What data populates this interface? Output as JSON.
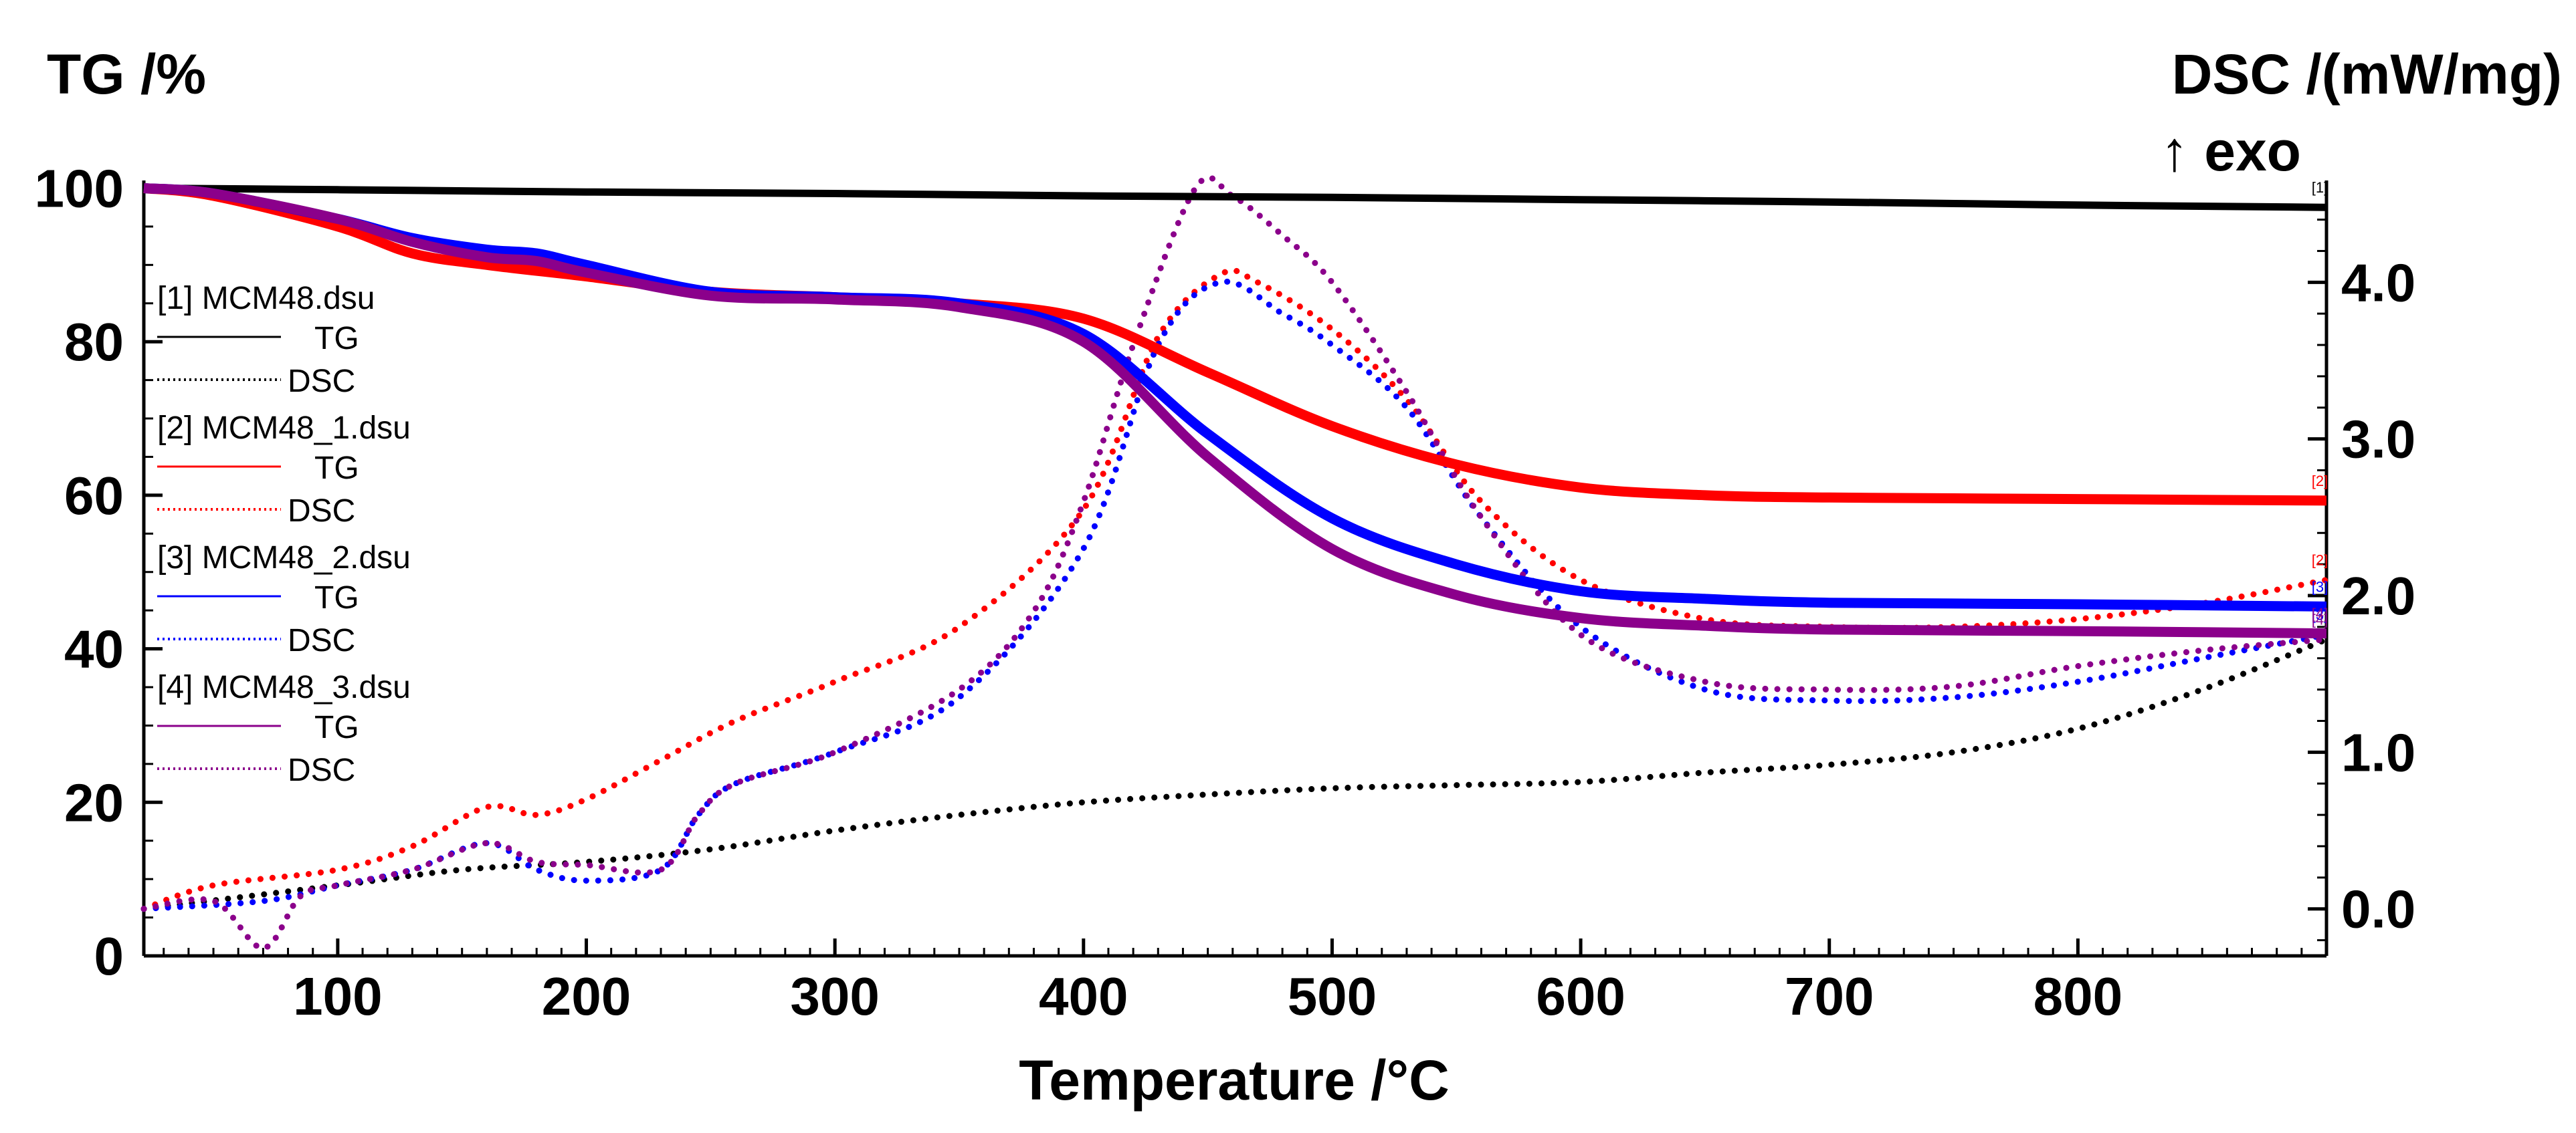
{
  "chart_data": {
    "type": "line",
    "title": "",
    "xlabel": "Temperature /°C",
    "ylabel_left": "TG /%",
    "ylabel_right": "DSC /(mWmg)",
    "ylabel_right_display": "DSC /(mW/mg)",
    "ylabel_right_note": "↑ exo",
    "xlim": [
      22,
      900
    ],
    "ylim_left": [
      0,
      101
    ],
    "ylim_right": [
      -0.3,
      4.65
    ],
    "xticks": [
      100,
      200,
      300,
      400,
      500,
      600,
      700,
      800
    ],
    "xtick_labels": [
      "100",
      "200",
      "300",
      "400",
      "500",
      "600",
      "700",
      "800"
    ],
    "yticks_left": [
      0,
      20,
      40,
      60,
      80,
      100
    ],
    "ytick_labels_left": [
      "0",
      "20",
      "40",
      "60",
      "80",
      "100"
    ],
    "yticks_right": [
      0,
      1,
      2,
      3,
      4
    ],
    "ytick_labels_right": [
      "0.0",
      "1.0",
      "2.0",
      "3.0",
      "4.0"
    ],
    "grid": false,
    "legend_position": "left",
    "legend": [
      {
        "file": "[1] MCM48.dsu",
        "tg": "TG",
        "dsc": "DSC",
        "color": "#000000"
      },
      {
        "file": "[2] MCM48_1.dsu",
        "tg": "TG",
        "dsc": "DSC",
        "color": "#ff0000"
      },
      {
        "file": "[3] MCM48_2.dsu",
        "tg": "TG",
        "dsc": "DSC",
        "color": "#0000ff"
      },
      {
        "file": "[4] MCM48_3.dsu",
        "tg": "TG",
        "dsc": "DSC",
        "color": "#8b008b"
      }
    ],
    "series": [
      {
        "name": "[1] MCM48 TG",
        "axis": "left",
        "style": "solid",
        "color": "#000000",
        "marker": "[1]",
        "x": [
          22,
          100,
          200,
          300,
          400,
          500,
          600,
          700,
          800,
          900
        ],
        "y": [
          100,
          99.8,
          99.5,
          99.3,
          99.0,
          98.8,
          98.5,
          98.2,
          97.8,
          97.5
        ]
      },
      {
        "name": "[1] MCM48 DSC",
        "axis": "right",
        "style": "dotted",
        "color": "#000000",
        "x": [
          22,
          100,
          150,
          200,
          250,
          300,
          350,
          400,
          450,
          500,
          550,
          600,
          650,
          700,
          750,
          800,
          850,
          900
        ],
        "y": [
          0.0,
          0.15,
          0.25,
          0.3,
          0.38,
          0.5,
          0.6,
          0.68,
          0.73,
          0.77,
          0.79,
          0.81,
          0.87,
          0.92,
          1.0,
          1.15,
          1.4,
          1.72
        ]
      },
      {
        "name": "[2] MCM48_1 TG",
        "axis": "left",
        "style": "solid",
        "color": "#ff0000",
        "marker": "[2]",
        "x": [
          22,
          50,
          100,
          130,
          160,
          200,
          250,
          300,
          350,
          400,
          450,
          500,
          550,
          600,
          650,
          700,
          800,
          900
        ],
        "y": [
          100,
          99,
          95,
          91.5,
          90,
          88.5,
          86.5,
          85.8,
          85,
          83,
          76,
          69,
          64,
          61,
          60,
          59.7,
          59.5,
          59.3
        ]
      },
      {
        "name": "[2] MCM48_1 DSC",
        "axis": "right",
        "style": "dotted",
        "color": "#ff0000",
        "marker": "[2]",
        "x": [
          22,
          50,
          100,
          130,
          160,
          180,
          200,
          230,
          260,
          300,
          350,
          400,
          430,
          455,
          470,
          500,
          530,
          560,
          600,
          650,
          700,
          750,
          800,
          850,
          900
        ],
        "y": [
          0.0,
          0.15,
          0.25,
          0.4,
          0.65,
          0.6,
          0.7,
          0.95,
          1.2,
          1.45,
          1.8,
          2.55,
          3.65,
          4.05,
          4.0,
          3.7,
          3.25,
          2.6,
          2.1,
          1.85,
          1.8,
          1.8,
          1.85,
          1.95,
          2.1
        ]
      },
      {
        "name": "[3] MCM48_2 TG",
        "axis": "left",
        "style": "solid",
        "color": "#0000ff",
        "marker": "[3]",
        "x": [
          22,
          50,
          100,
          130,
          160,
          180,
          200,
          250,
          300,
          350,
          400,
          450,
          500,
          550,
          600,
          650,
          700,
          800,
          900
        ],
        "y": [
          100,
          99.3,
          96,
          93.5,
          92,
          91.5,
          90,
          86.5,
          85.8,
          85,
          81,
          68,
          57,
          51,
          47.5,
          46.5,
          46,
          45.8,
          45.5
        ]
      },
      {
        "name": "[3] MCM48_2 DSC",
        "axis": "right",
        "style": "dotted",
        "color": "#0000ff",
        "marker": "[3]",
        "x": [
          22,
          70,
          100,
          130,
          160,
          180,
          200,
          230,
          245,
          260,
          300,
          350,
          400,
          430,
          455,
          480,
          500,
          530,
          560,
          600,
          650,
          700,
          750,
          800,
          850,
          900
        ],
        "y": [
          0.0,
          0.05,
          0.15,
          0.25,
          0.42,
          0.25,
          0.18,
          0.25,
          0.6,
          0.8,
          1.0,
          1.35,
          2.3,
          3.6,
          4.0,
          3.8,
          3.6,
          3.2,
          2.5,
          1.8,
          1.4,
          1.33,
          1.35,
          1.45,
          1.6,
          1.75
        ]
      },
      {
        "name": "[4] MCM48_3 TG",
        "axis": "left",
        "style": "solid",
        "color": "#8b008b",
        "marker": "[4]",
        "x": [
          22,
          50,
          100,
          130,
          160,
          180,
          200,
          250,
          300,
          350,
          400,
          450,
          500,
          550,
          600,
          650,
          700,
          800,
          900
        ],
        "y": [
          100,
          99.3,
          96,
          93,
          91,
          90.5,
          89,
          86,
          85.5,
          84.5,
          80,
          65,
          53,
          47,
          44,
          43,
          42.5,
          42.3,
          42
        ]
      },
      {
        "name": "[4] MCM48_3 DSC",
        "axis": "right",
        "style": "dotted",
        "color": "#8b008b",
        "marker": "[4]",
        "x": [
          22,
          50,
          70,
          85,
          100,
          130,
          160,
          180,
          200,
          230,
          245,
          260,
          300,
          350,
          380,
          400,
          420,
          445,
          460,
          480,
          500,
          530,
          560,
          600,
          650,
          700,
          750,
          800,
          850,
          900
        ],
        "y": [
          0.0,
          0.05,
          -0.25,
          0.08,
          0.15,
          0.25,
          0.42,
          0.3,
          0.28,
          0.25,
          0.6,
          0.8,
          1.0,
          1.4,
          1.9,
          2.6,
          3.6,
          4.6,
          4.55,
          4.3,
          4.0,
          3.3,
          2.5,
          1.75,
          1.45,
          1.4,
          1.42,
          1.55,
          1.65,
          1.72
        ]
      }
    ]
  }
}
